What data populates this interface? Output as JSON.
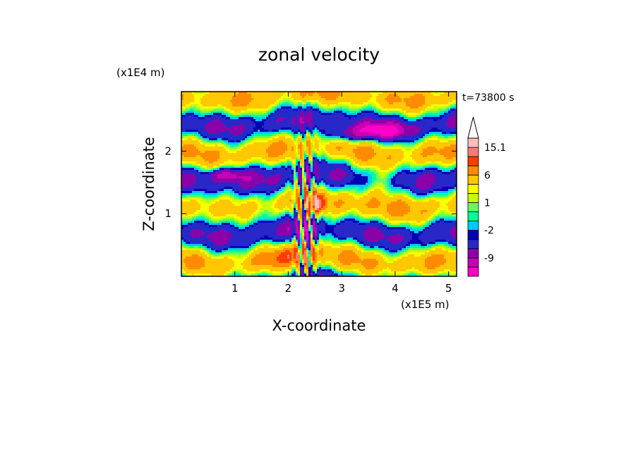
{
  "chart_data": {
    "type": "heatmap",
    "title": "zonal velocity",
    "xlabel": "X-coordinate",
    "ylabel": "Z-coordinate",
    "x_unit": "(x1E5 m)",
    "y_unit": "(x1E4 m)",
    "time_label": "t=73800 s",
    "xlim": [
      0,
      5.15
    ],
    "ylim": [
      0,
      2.95
    ],
    "x_ticks": [
      "1",
      "2",
      "3",
      "4",
      "5"
    ],
    "y_ticks": [
      "1",
      "2"
    ],
    "x_tick_values": [
      1,
      2,
      3,
      4,
      5
    ],
    "y_tick_values": [
      1,
      2
    ],
    "colorbar": {
      "levels": [
        -15,
        -12,
        -9,
        -6,
        -3,
        -2,
        -1,
        0,
        1,
        2,
        3,
        6,
        9,
        12,
        15.1
      ],
      "labels": [
        "15.1",
        "6",
        "1",
        "-2",
        "-9"
      ],
      "label_values": [
        15.1,
        6,
        1,
        -2,
        -9
      ],
      "colors": [
        "#ff00c8",
        "#c800b4",
        "#8c00aa",
        "#2828c8",
        "#0000b4",
        "#00c8ff",
        "#00ff9c",
        "#64ff64",
        "#c8ff00",
        "#ffff00",
        "#ffc800",
        "#ff8c00",
        "#ff3c00",
        "#ff7878",
        "#ffbebe"
      ],
      "extend": "max"
    }
  }
}
